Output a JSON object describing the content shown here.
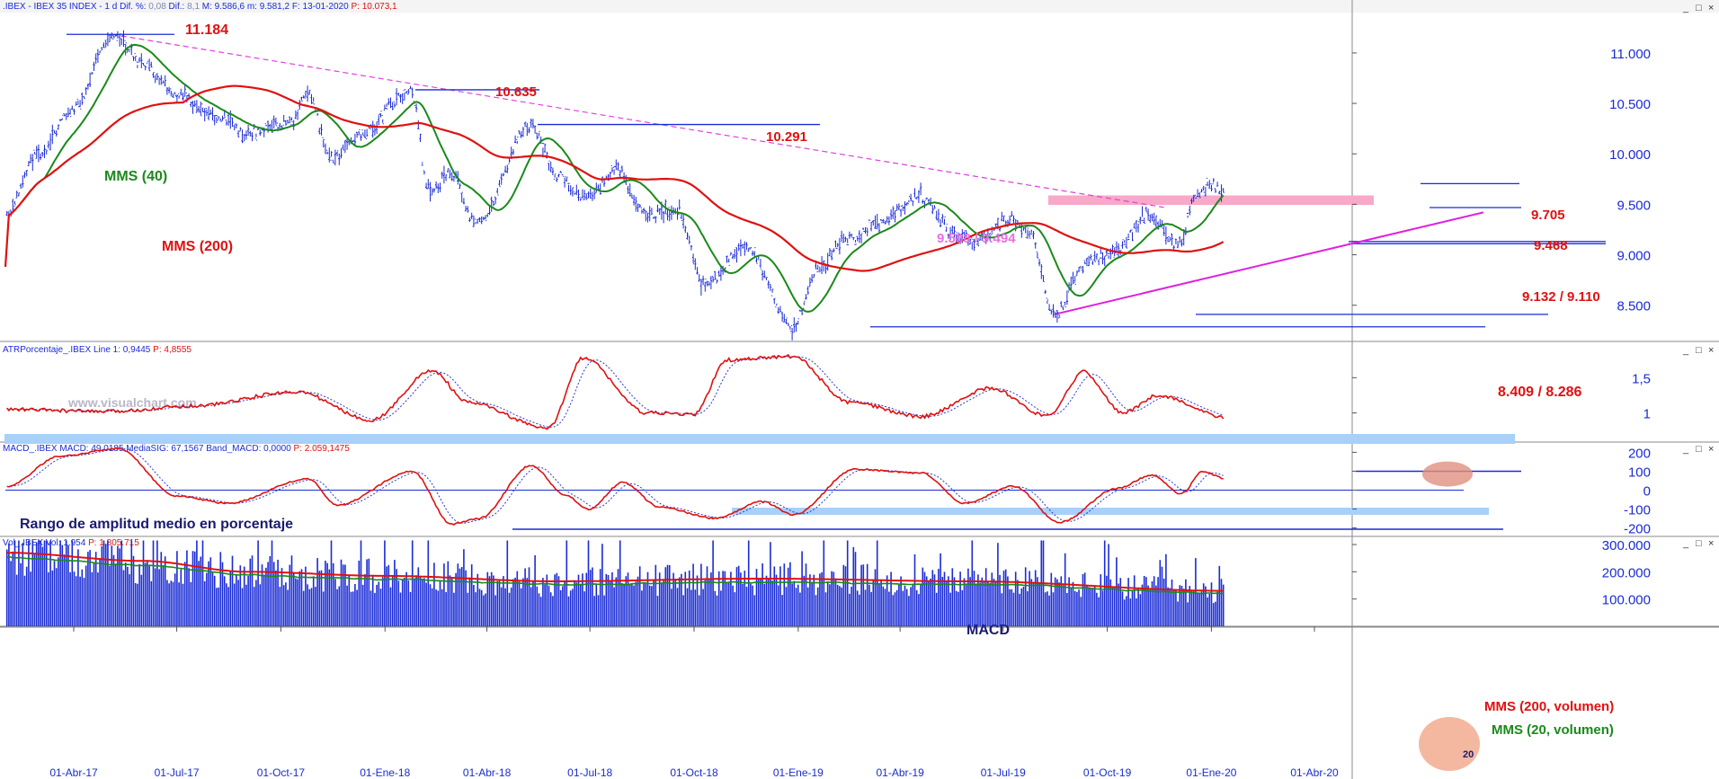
{
  "colors": {
    "price": "#1a2bd6",
    "ma_short": "#1a8a1a",
    "ma_long": "#e01010",
    "label_red": "#e01010",
    "label_green": "#1a8a1a",
    "trend_dash": "#e040e0",
    "support_line": "#1a2bd6",
    "zone_pink": "#f8a8c8",
    "zone_blue": "#a8d0f8",
    "axis_text": "#1a2bd6",
    "header_text": "#1a2bd6",
    "header_red": "#e01010"
  },
  "header": {
    "main": {
      "name": ".IBEX - IBEX 35 INDEX - 1 d",
      "dif_label": "Dif. %:",
      "dif_value": "0,08",
      "dif2_label": "Dif.:",
      "dif2_value": "8,1",
      "max_label": "M:",
      "max_value": "9.586,6",
      "min_label": "m:",
      "min_value": "9.581,2",
      "date_label": "F:",
      "date_value": "13-01-2020",
      "p_label": "P:",
      "p_value": "10.073,1"
    },
    "atr": {
      "name": "ATRPorcentaje_.IBEX",
      "line_label": "Line 1:",
      "line_value": "0,9445",
      "p_label": "P:",
      "p_value": "4,8555"
    },
    "macd": {
      "name": "MACD_.IBEX",
      "macd_label": "MACD:",
      "macd_value": "49,0185",
      "sig_label": "MediaSIG:",
      "sig_value": "67,1567",
      "band_label": "Band_MACD:",
      "band_value": "0,0000",
      "p_label": "P:",
      "p_value": "2.059,1475"
    },
    "vol": {
      "name": "Vol_.IBEX",
      "vol_label": "Vol:",
      "vol_value": "1.954",
      "p_label": "P:",
      "p_value": "1.805.715"
    }
  },
  "watermark": "www.visualchart.com",
  "window_controls": [
    "_",
    "□",
    "×"
  ],
  "chart_data": [
    {
      "type": "line",
      "panel": "price",
      "x": [
        "01-Abr-17",
        "01-Jul-17",
        "01-Oct-17",
        "01-Ene-18",
        "01-Abr-18",
        "01-Jul-18",
        "01-Oct-18",
        "01-Ene-19",
        "01-Abr-19",
        "01-Jul-19",
        "01-Oct-19",
        "01-Ene-20",
        "01-Abr-20"
      ],
      "y_ticks": [
        "11.000",
        "10.500",
        "10.000",
        "9.500",
        "9.000",
        "8.500"
      ],
      "ylim": [
        8150,
        11400
      ],
      "series": [
        {
          "name": "MMS (40)"
        },
        {
          "name": "MMS (200)"
        }
      ],
      "key_points": [
        {
          "d": "2017-02-01",
          "v": 9420
        },
        {
          "d": "2017-03-01",
          "v": 10000
        },
        {
          "d": "2017-04-01",
          "v": 10450
        },
        {
          "d": "2017-05-05",
          "v": 11184
        },
        {
          "d": "2017-06-01",
          "v": 10900
        },
        {
          "d": "2017-07-01",
          "v": 10580
        },
        {
          "d": "2017-08-10",
          "v": 10350
        },
        {
          "d": "2017-09-01",
          "v": 10200
        },
        {
          "d": "2017-10-10",
          "v": 10320
        },
        {
          "d": "2017-10-25",
          "v": 10580
        },
        {
          "d": "2017-11-15",
          "v": 9950
        },
        {
          "d": "2017-12-10",
          "v": 10200
        },
        {
          "d": "2018-01-24",
          "v": 10635
        },
        {
          "d": "2018-02-09",
          "v": 9630
        },
        {
          "d": "2018-03-01",
          "v": 9800
        },
        {
          "d": "2018-03-23",
          "v": 9300
        },
        {
          "d": "2018-05-10",
          "v": 10291
        },
        {
          "d": "2018-06-01",
          "v": 9800
        },
        {
          "d": "2018-06-28",
          "v": 9550
        },
        {
          "d": "2018-07-25",
          "v": 9850
        },
        {
          "d": "2018-08-20",
          "v": 9400
        },
        {
          "d": "2018-09-15",
          "v": 9450
        },
        {
          "d": "2018-10-11",
          "v": 8700
        },
        {
          "d": "2018-11-15",
          "v": 9100
        },
        {
          "d": "2018-12-27",
          "v": 8286
        },
        {
          "d": "2019-01-20",
          "v": 8900
        },
        {
          "d": "2019-02-15",
          "v": 9150
        },
        {
          "d": "2019-03-10",
          "v": 9300
        },
        {
          "d": "2019-04-18",
          "v": 9580
        },
        {
          "d": "2019-05-20",
          "v": 9200
        },
        {
          "d": "2019-06-10",
          "v": 9150
        },
        {
          "d": "2019-07-05",
          "v": 9350
        },
        {
          "d": "2019-07-25",
          "v": 9200
        },
        {
          "d": "2019-08-15",
          "v": 8409
        },
        {
          "d": "2019-09-15",
          "v": 8950
        },
        {
          "d": "2019-10-10",
          "v": 9050
        },
        {
          "d": "2019-11-05",
          "v": 9400
        },
        {
          "d": "2019-12-03",
          "v": 9110
        },
        {
          "d": "2019-12-20",
          "v": 9600
        },
        {
          "d": "2020-01-02",
          "v": 9705
        },
        {
          "d": "2020-01-13",
          "v": 9580
        }
      ],
      "annotations": [
        {
          "text": "11.184",
          "color": "red"
        },
        {
          "text": "10.635",
          "color": "red"
        },
        {
          "text": "10.291",
          "color": "red"
        },
        {
          "text": "9.705",
          "color": "red"
        },
        {
          "text": "9.468",
          "color": "red"
        },
        {
          "text": "9.588 / 9.494",
          "color": "pink"
        },
        {
          "text": "9.132 / 9.110",
          "color": "red"
        },
        {
          "text": "8.409 / 8.286",
          "color": "red"
        },
        {
          "text": "MMS (40)",
          "color": "green"
        },
        {
          "text": "MMS (200)",
          "color": "red"
        }
      ]
    },
    {
      "type": "line",
      "panel": "atr",
      "y_ticks": [
        "1,5",
        "1"
      ],
      "ylim": [
        0.6,
        1.95
      ],
      "series": [
        {
          "name": "Line 1"
        }
      ],
      "key_points": [
        {
          "d": "2017-02-01",
          "v": 1.05
        },
        {
          "d": "2017-05-01",
          "v": 1.02
        },
        {
          "d": "2017-07-15",
          "v": 1.1
        },
        {
          "d": "2017-10-15",
          "v": 1.3
        },
        {
          "d": "2017-12-20",
          "v": 0.9
        },
        {
          "d": "2018-02-12",
          "v": 1.6
        },
        {
          "d": "2018-03-15",
          "v": 1.15
        },
        {
          "d": "2018-05-25",
          "v": 0.78
        },
        {
          "d": "2018-06-25",
          "v": 1.78
        },
        {
          "d": "2018-08-20",
          "v": 1.0
        },
        {
          "d": "2018-10-01",
          "v": 0.98
        },
        {
          "d": "2018-10-30",
          "v": 1.75
        },
        {
          "d": "2018-12-27",
          "v": 1.8
        },
        {
          "d": "2019-02-15",
          "v": 1.15
        },
        {
          "d": "2019-04-20",
          "v": 0.95
        },
        {
          "d": "2019-06-20",
          "v": 1.35
        },
        {
          "d": "2019-08-10",
          "v": 0.95
        },
        {
          "d": "2019-09-10",
          "v": 1.58
        },
        {
          "d": "2019-10-15",
          "v": 1.0
        },
        {
          "d": "2019-11-15",
          "v": 1.25
        },
        {
          "d": "2020-01-13",
          "v": 0.94
        }
      ],
      "annotations": [
        {
          "text": "Rango de amplitud medio en porcentaje"
        }
      ]
    },
    {
      "type": "line",
      "panel": "macd",
      "y_ticks": [
        "200",
        "100",
        "0",
        "-100",
        "-200"
      ],
      "ylim": [
        -240,
        240
      ],
      "series": [
        {
          "name": "MACD"
        },
        {
          "name": "MediaSIG"
        }
      ],
      "key_points": [
        {
          "d": "2017-02-01",
          "v": 20
        },
        {
          "d": "2017-03-20",
          "v": 180
        },
        {
          "d": "2017-05-10",
          "v": 220
        },
        {
          "d": "2017-07-01",
          "v": -30
        },
        {
          "d": "2017-08-15",
          "v": -70
        },
        {
          "d": "2017-10-25",
          "v": 60
        },
        {
          "d": "2017-11-20",
          "v": -80
        },
        {
          "d": "2018-01-25",
          "v": 100
        },
        {
          "d": "2018-03-01",
          "v": -180
        },
        {
          "d": "2018-03-25",
          "v": -150
        },
        {
          "d": "2018-05-10",
          "v": 130
        },
        {
          "d": "2018-06-10",
          "v": -30
        },
        {
          "d": "2018-06-30",
          "v": -100
        },
        {
          "d": "2018-07-30",
          "v": 40
        },
        {
          "d": "2018-09-01",
          "v": -90
        },
        {
          "d": "2018-10-20",
          "v": -150
        },
        {
          "d": "2018-11-30",
          "v": -60
        },
        {
          "d": "2018-12-28",
          "v": -130
        },
        {
          "d": "2019-02-20",
          "v": 110
        },
        {
          "d": "2019-04-20",
          "v": 90
        },
        {
          "d": "2019-05-28",
          "v": -70
        },
        {
          "d": "2019-07-10",
          "v": 20
        },
        {
          "d": "2019-08-20",
          "v": -170
        },
        {
          "d": "2019-10-10",
          "v": 10
        },
        {
          "d": "2019-11-10",
          "v": 80
        },
        {
          "d": "2019-12-05",
          "v": -20
        },
        {
          "d": "2019-12-25",
          "v": 100
        },
        {
          "d": "2020-01-13",
          "v": 60
        }
      ],
      "annotations": [
        {
          "text": "MACD"
        }
      ]
    },
    {
      "type": "bar",
      "panel": "volume",
      "y_ticks": [
        "300.000",
        "200.000",
        "100.000"
      ],
      "ylim": [
        0,
        320000
      ],
      "series": [
        {
          "name": "Vol"
        },
        {
          "name": "MMS (200, volumen)"
        },
        {
          "name": "MMS (20, volumen)"
        }
      ],
      "key_points": [
        {
          "d": "2017-02-01",
          "v": 270000
        },
        {
          "d": "2017-06-01",
          "v": 240000
        },
        {
          "d": "2017-09-01",
          "v": 200000
        },
        {
          "d": "2018-01-01",
          "v": 185000
        },
        {
          "d": "2018-06-01",
          "v": 165000
        },
        {
          "d": "2018-12-01",
          "v": 175000
        },
        {
          "d": "2019-06-01",
          "v": 165000
        },
        {
          "d": "2020-01-13",
          "v": 130000
        }
      ],
      "annotations": [
        {
          "text": "MMS (200, volumen)",
          "color": "red"
        },
        {
          "text": "MMS (20, volumen)",
          "color": "green"
        },
        {
          "text": "20"
        }
      ]
    }
  ]
}
